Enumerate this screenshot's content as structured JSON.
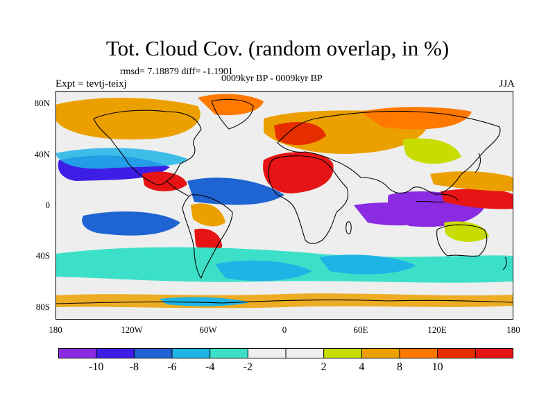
{
  "title": "Tot. Cloud Cov. (random overlap, in %)",
  "stats_text": "rmsd= 7.18879 diff= -1.1901",
  "period_text": "0009kyr BP - 0009kyr BP",
  "experiment_text": "Expt = tevtj-teixj",
  "season_text": "JJA",
  "map": {
    "projection": "cylindrical-equidistant",
    "lon_range": [
      -180,
      180
    ],
    "lat_range": [
      -90,
      90
    ],
    "y_ticks": [
      {
        "label": "80N",
        "lat": 80
      },
      {
        "label": "40N",
        "lat": 40
      },
      {
        "label": "0",
        "lat": 0
      },
      {
        "label": "40S",
        "lat": -40
      },
      {
        "label": "80S",
        "lat": -80
      }
    ],
    "x_ticks": [
      {
        "label": "180",
        "lon": -180
      },
      {
        "label": "120W",
        "lon": -120
      },
      {
        "label": "60W",
        "lon": -60
      },
      {
        "label": "0",
        "lon": 0
      },
      {
        "label": "60E",
        "lon": 60
      },
      {
        "label": "120E",
        "lon": 120
      },
      {
        "label": "180",
        "lon": 180
      }
    ]
  },
  "colorbar": {
    "colors": [
      "#8a2be2",
      "#3c1ee6",
      "#1e64d2",
      "#1eb4e6",
      "#3ce0c8",
      "#eeeeee",
      "#eeeeee",
      "#c8dc00",
      "#eba000",
      "#ff7800",
      "#e62d00",
      "#e61414"
    ],
    "tick_labels": [
      "-10",
      "-8",
      "-6",
      "-4",
      "-2",
      "2",
      "4",
      "8",
      "10"
    ],
    "tick_after_segment": [
      1,
      2,
      3,
      4,
      5,
      7,
      8,
      9,
      10
    ]
  }
}
